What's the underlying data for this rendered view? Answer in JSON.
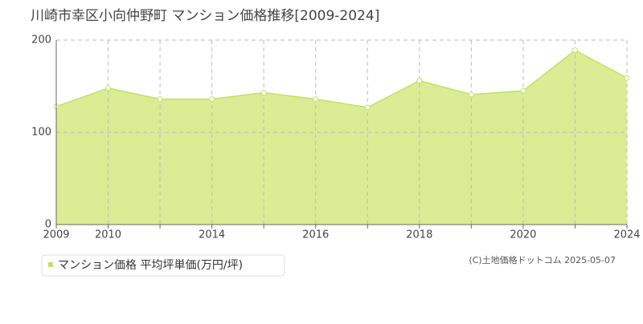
{
  "chart_data": {
    "type": "area",
    "title": "川崎市幸区小向仲野町 マンション価格推移[2009-2024]",
    "categories": [
      "2009",
      "2010",
      null,
      "2014",
      null,
      "2016",
      null,
      "2018",
      null,
      "2020",
      null,
      "2024"
    ],
    "series": [
      {
        "name": "マンション価格 平均坪単価(万円/坪)",
        "color": "#c3df6a",
        "fill": "#dcec94",
        "values": [
          128,
          148,
          136,
          136,
          143,
          136,
          127,
          156,
          141,
          145,
          189,
          159
        ]
      }
    ],
    "ylim": [
      0,
      200
    ],
    "yticks": [
      0,
      100,
      200
    ],
    "grid": true,
    "copyright": "(C)土地価格ドットコム 2025-05-07"
  }
}
